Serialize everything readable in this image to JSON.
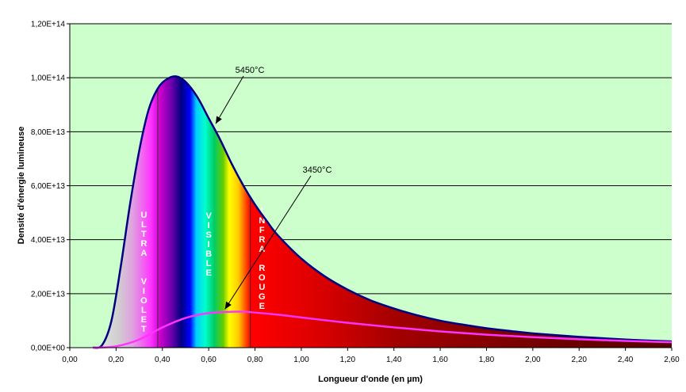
{
  "chart_data": {
    "type": "line",
    "title": "",
    "xlabel": "Longueur d'onde (en µm)",
    "ylabel": "Densité d'énergie lumineuse",
    "xlim": [
      0,
      2.6
    ],
    "ylim": [
      0,
      120000000000000.0
    ],
    "x_ticks": [
      "0,00",
      "0,20",
      "0,40",
      "0,60",
      "0,80",
      "1,00",
      "1,20",
      "1,40",
      "1,60",
      "1,80",
      "2,00",
      "2,20",
      "2,40",
      "2,60"
    ],
    "y_ticks": [
      "0,00E+00",
      "2,00E+13",
      "4,00E+13",
      "6,00E+13",
      "8,00E+13",
      "1,00E+14",
      "1,20E+14"
    ],
    "grid": "horizontal",
    "plot_background": "#ccffcc",
    "series": [
      {
        "name": "5450°C",
        "color": "#000080",
        "x": [
          0.1,
          0.14,
          0.18,
          0.22,
          0.26,
          0.3,
          0.34,
          0.38,
          0.42,
          0.46,
          0.5,
          0.55,
          0.6,
          0.65,
          0.7,
          0.75,
          0.8,
          0.85,
          0.9,
          1.0,
          1.1,
          1.2,
          1.3,
          1.4,
          1.5,
          1.6,
          1.7,
          1.8,
          1.9,
          2.0,
          2.2,
          2.4,
          2.6
        ],
        "y": [
          0,
          1000000000000.0,
          10000000000000.0,
          30000000000000.0,
          53000000000000.0,
          73000000000000.0,
          88000000000000.0,
          96000000000000.0,
          99500000000000.0,
          100500000000000.0,
          98500000000000.0,
          93000000000000.0,
          85000000000000.0,
          77000000000000.0,
          68000000000000.0,
          60000000000000.0,
          53000000000000.0,
          47000000000000.0,
          41500000000000.0,
          33000000000000.0,
          26500000000000.0,
          21500000000000.0,
          17500000000000.0,
          14500000000000.0,
          12000000000000.0,
          10000000000000.0,
          8500000000000.0,
          7200000000000.0,
          6200000000000.0,
          5300000000000.0,
          4000000000000.0,
          3000000000000.0,
          2300000000000.0
        ]
      },
      {
        "name": "3450°C",
        "color": "#ff33ff",
        "x": [
          0.1,
          0.2,
          0.3,
          0.4,
          0.5,
          0.6,
          0.7,
          0.75,
          0.8,
          0.9,
          1.0,
          1.2,
          1.4,
          1.6,
          1.8,
          2.0,
          2.2,
          2.4,
          2.6
        ],
        "y": [
          0,
          500000000000.0,
          3000000000000.0,
          7500000000000.0,
          11000000000000.0,
          12800000000000.0,
          13300000000000.0,
          13300000000000.0,
          13000000000000.0,
          12200000000000.0,
          11200000000000.0,
          9200000000000.0,
          7500000000000.0,
          6000000000000.0,
          4800000000000.0,
          3900000000000.0,
          3100000000000.0,
          2500000000000.0,
          2000000000000.0
        ]
      }
    ],
    "regions": [
      {
        "label": "ULTRA VIOLET",
        "x_start": 0.1,
        "x_end": 0.38
      },
      {
        "label": "VISIBLE",
        "x_start": 0.38,
        "x_end": 0.78
      },
      {
        "label": "INFRA ROUGE",
        "x_start": 0.78,
        "x_end": 2.6
      }
    ],
    "annotations": [
      {
        "text": "5450°C",
        "series": "5450°C",
        "point_x": 0.62
      },
      {
        "text": "3450°C",
        "series": "3450°C",
        "point_x": 0.66
      }
    ]
  }
}
